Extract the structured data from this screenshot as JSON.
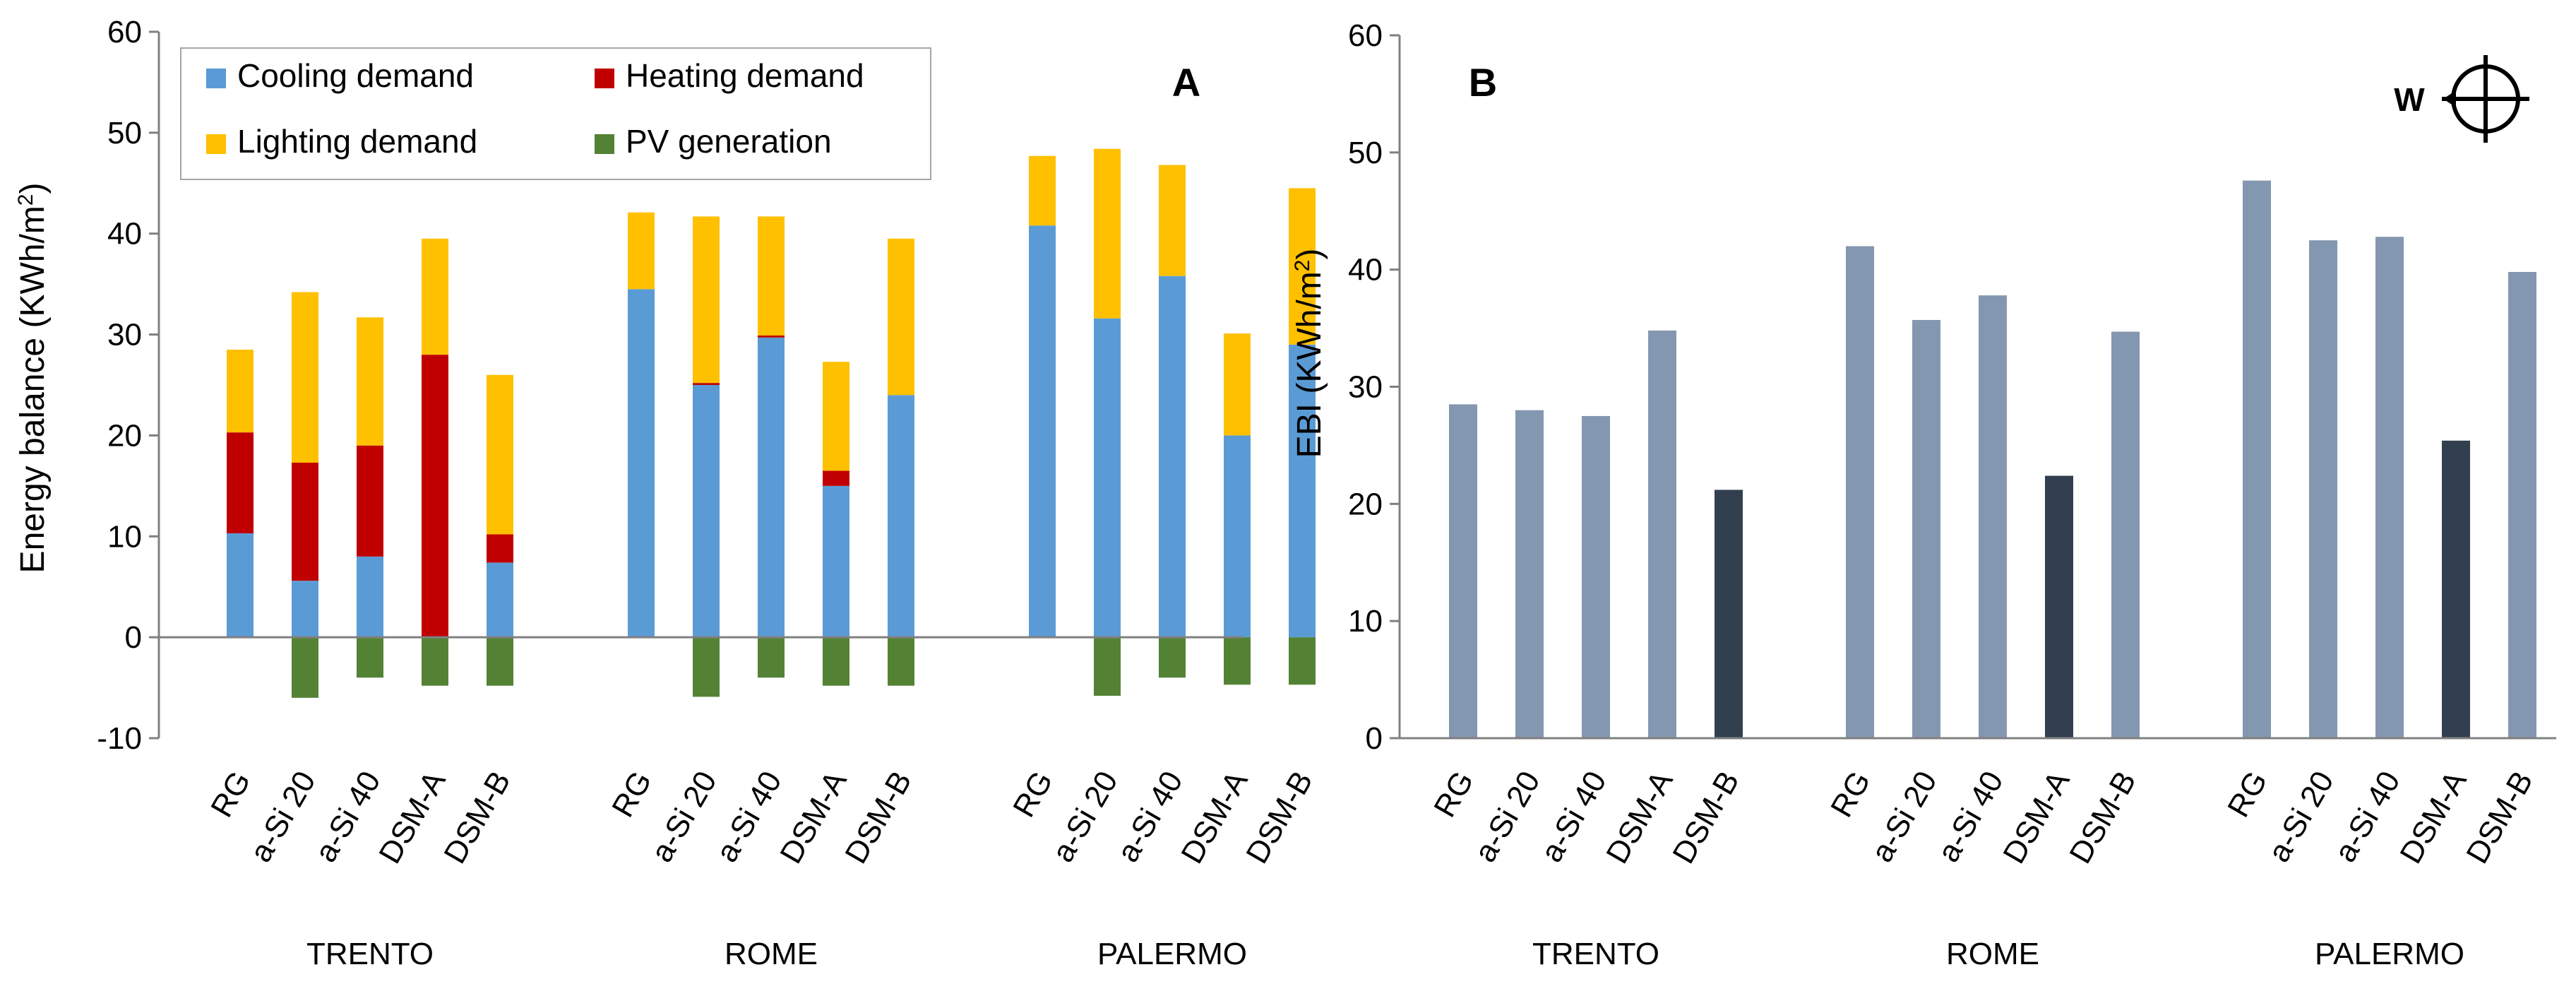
{
  "chart_data": [
    {
      "panel": "A",
      "type": "bar",
      "stacked": true,
      "ylabel": "Energy balance (KWh/m²)",
      "ylabel_parts": [
        "Energy balance (KWh/m",
        "2",
        ")"
      ],
      "ylim": [
        -10,
        60
      ],
      "yticks": [
        -10,
        0,
        10,
        20,
        30,
        40,
        50,
        60
      ],
      "groups": [
        {
          "name": "TRENTO",
          "categories": [
            "RG",
            "a-Si 20",
            "a-Si 40",
            "DSM-A",
            "DSM-B"
          ]
        },
        {
          "name": "ROME",
          "categories": [
            "RG",
            "a-Si 20",
            "a-Si 40",
            "DSM-A",
            "DSM-B"
          ]
        },
        {
          "name": "PALERMO",
          "categories": [
            "RG",
            "a-Si 20",
            "a-Si 40",
            "DSM-A",
            "DSM-B"
          ]
        }
      ],
      "series": [
        {
          "name": "Cooling demand",
          "color": "#5b9bd5",
          "values": [
            10.3,
            5.6,
            8.0,
            0.0,
            7.4,
            34.5,
            25.0,
            29.7,
            15.0,
            24.0,
            40.8,
            31.6,
            35.8,
            20.0,
            29.0
          ]
        },
        {
          "name": "Heating demand",
          "color": "#c00000",
          "values": [
            10.0,
            11.7,
            11.0,
            28.0,
            2.8,
            0.0,
            0.2,
            0.2,
            1.5,
            0.0,
            0.0,
            0.0,
            0.0,
            0.0,
            0.0
          ]
        },
        {
          "name": "Lighting demand",
          "color": "#ffc000",
          "values": [
            8.2,
            16.9,
            12.7,
            11.5,
            15.8,
            7.6,
            16.5,
            11.8,
            10.8,
            15.5,
            6.9,
            16.8,
            11.0,
            10.1,
            15.5
          ]
        },
        {
          "name": "PV generation",
          "color": "#548235",
          "values": [
            0,
            -6.0,
            -4.0,
            -4.8,
            -4.8,
            0,
            -5.9,
            -4.0,
            -4.8,
            -4.8,
            0,
            -5.8,
            -4.0,
            -4.7,
            -4.7
          ]
        }
      ],
      "legend": {
        "placement": "top-left",
        "items": [
          "Cooling demand",
          "Heating demand",
          "Lighting demand",
          "PV generation"
        ]
      }
    },
    {
      "panel": "B",
      "type": "bar",
      "ylabel": "EBI (KWh/m²)",
      "ylabel_parts": [
        "EBI (KWh/m",
        "2",
        ")"
      ],
      "ylim": [
        0,
        60
      ],
      "yticks": [
        0,
        10,
        20,
        30,
        40,
        50,
        60
      ],
      "groups": [
        {
          "name": "TRENTO",
          "categories": [
            "RG",
            "a-Si 20",
            "a-Si 40",
            "DSM-A",
            "DSM-B"
          ]
        },
        {
          "name": "ROME",
          "categories": [
            "RG",
            "a-Si 20",
            "a-Si 40",
            "DSM-A",
            "DSM-B"
          ]
        },
        {
          "name": "PALERMO",
          "categories": [
            "RG",
            "a-Si 20",
            "a-Si 40",
            "DSM-A",
            "DSM-B"
          ]
        }
      ],
      "values": [
        28.5,
        28.0,
        27.5,
        34.8,
        21.2,
        42.0,
        35.7,
        37.8,
        22.4,
        34.7,
        47.6,
        42.5,
        42.8,
        25.4,
        39.8
      ],
      "highlight": [
        false,
        false,
        false,
        false,
        true,
        false,
        false,
        false,
        true,
        false,
        false,
        false,
        false,
        true,
        false
      ],
      "colors": {
        "default": "#8497b0",
        "highlight": "#323f4f"
      },
      "orientation_label": "W"
    }
  ]
}
